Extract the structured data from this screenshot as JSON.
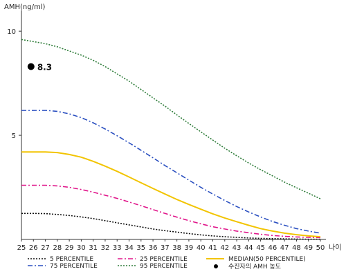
{
  "chart_data": {
    "type": "line",
    "ylabel": "AMH(ng/ml)",
    "xlabel": "나이",
    "xlim": [
      25,
      50
    ],
    "ylim": [
      0,
      11
    ],
    "yticks": [
      5,
      10
    ],
    "x": [
      25,
      26,
      27,
      28,
      29,
      30,
      31,
      32,
      33,
      34,
      35,
      36,
      37,
      38,
      39,
      40,
      41,
      42,
      43,
      44,
      45,
      46,
      47,
      48,
      49,
      50
    ],
    "series": [
      {
        "name": "5 PERCENTILE",
        "color": "#111111",
        "dash": "2,2",
        "values": [
          1.25,
          1.25,
          1.24,
          1.2,
          1.15,
          1.08,
          1.0,
          0.9,
          0.8,
          0.7,
          0.6,
          0.5,
          0.42,
          0.35,
          0.28,
          0.22,
          0.17,
          0.13,
          0.1,
          0.07,
          0.05,
          0.04,
          0.03,
          0.02,
          0.01,
          0.01
        ]
      },
      {
        "name": "25 PERCENTILE",
        "color": "#e0158a",
        "dash": "7,3,2,3",
        "values": [
          2.6,
          2.6,
          2.6,
          2.57,
          2.5,
          2.4,
          2.27,
          2.12,
          1.97,
          1.8,
          1.62,
          1.43,
          1.25,
          1.07,
          0.9,
          0.75,
          0.61,
          0.5,
          0.4,
          0.32,
          0.25,
          0.19,
          0.15,
          0.12,
          0.1,
          0.09
        ]
      },
      {
        "name": "MEDIAN(50 PERCENTILE)",
        "color": "#f2c400",
        "dash": "",
        "values": [
          4.2,
          4.2,
          4.2,
          4.17,
          4.08,
          3.95,
          3.75,
          3.52,
          3.27,
          3.0,
          2.72,
          2.45,
          2.18,
          1.92,
          1.68,
          1.45,
          1.23,
          1.03,
          0.85,
          0.68,
          0.52,
          0.4,
          0.3,
          0.23,
          0.17,
          0.13
        ]
      },
      {
        "name": "75 PERCENTILE",
        "color": "#2a4fc0",
        "dash": "7,3,2,3",
        "values": [
          6.2,
          6.2,
          6.2,
          6.15,
          6.03,
          5.85,
          5.6,
          5.3,
          4.98,
          4.64,
          4.28,
          3.92,
          3.55,
          3.2,
          2.85,
          2.5,
          2.18,
          1.87,
          1.58,
          1.32,
          1.08,
          0.86,
          0.68,
          0.52,
          0.4,
          0.3
        ]
      },
      {
        "name": "95 PERCENTILE",
        "color": "#2f7d3a",
        "dash": "2,2",
        "values": [
          9.6,
          9.5,
          9.4,
          9.25,
          9.05,
          8.85,
          8.6,
          8.3,
          7.95,
          7.6,
          7.2,
          6.8,
          6.4,
          5.98,
          5.57,
          5.17,
          4.77,
          4.38,
          4.02,
          3.67,
          3.35,
          3.05,
          2.75,
          2.48,
          2.22,
          1.95
        ]
      }
    ],
    "point": {
      "name": "수진자의 AMH 농도",
      "x": 25.8,
      "y": 8.3,
      "label": "8.3"
    }
  }
}
